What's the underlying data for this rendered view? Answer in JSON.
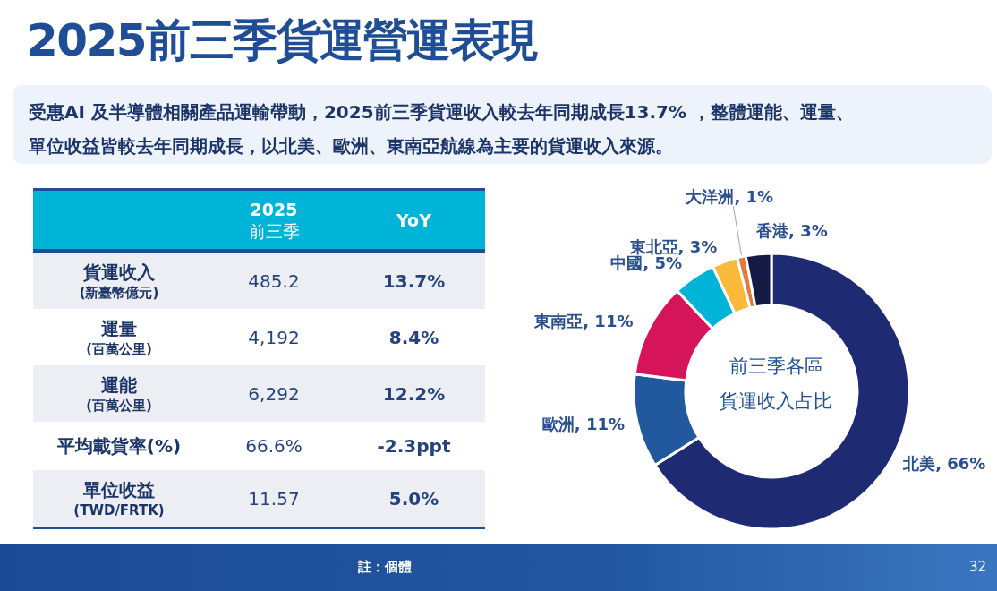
{
  "chart_data": [
    {
      "type": "other",
      "title": "2025前三季貨運營運表現",
      "subtitle": "受惠AI 及半導體相關產品運輸帶動，2025前三季貨運收入較去年同期成長13.7% ，整體運能、運量、單位收益皆較去年同期成長，以北美、歐洲、東南亞航線為主要的貨運收入來源。",
      "categories": [
        "貨運收入\n(新臺幣億元)",
        "運量\n(百萬公里)",
        "運能\n(百萬公里)",
        "平均載貨率(%)",
        "單位收益\n(TWD/FRTK)"
      ],
      "series": [
        {
          "name": "2025\n前三季",
          "values": [
            485.2,
            4192,
            6292,
            66.6,
            11.57
          ],
          "value_labels": [
            "485.2",
            "4,192",
            "6,292",
            "66.6%",
            "11.57"
          ]
        },
        {
          "name": "YoY",
          "values": [
            13.7,
            8.4,
            12.2,
            -2.3,
            5.0
          ],
          "value_labels": [
            "13.7%",
            "8.4%",
            "12.2%",
            "-2.3ppt",
            "5.0%"
          ]
        }
      ]
    },
    {
      "type": "donut",
      "title": "前三季各區",
      "subtitle": "貨運收入占比",
      "categories": [
        "北美",
        "歐洲",
        "東南亞",
        "中國",
        "東北亞",
        "大洋洲",
        "香港"
      ],
      "values": [
        66,
        11,
        11,
        5,
        3,
        1,
        3
      ],
      "value_labels": [
        "66%",
        "11%",
        "11%",
        "5%",
        "3%",
        "1%",
        "3%"
      ],
      "colors": [
        "#1e2a72",
        "#22589e",
        "#d6145a",
        "#00b4d8",
        "#f9b93b",
        "#e07b39",
        "#141a44"
      ],
      "annotations": [
        "註：個體",
        "32"
      ]
    }
  ]
}
